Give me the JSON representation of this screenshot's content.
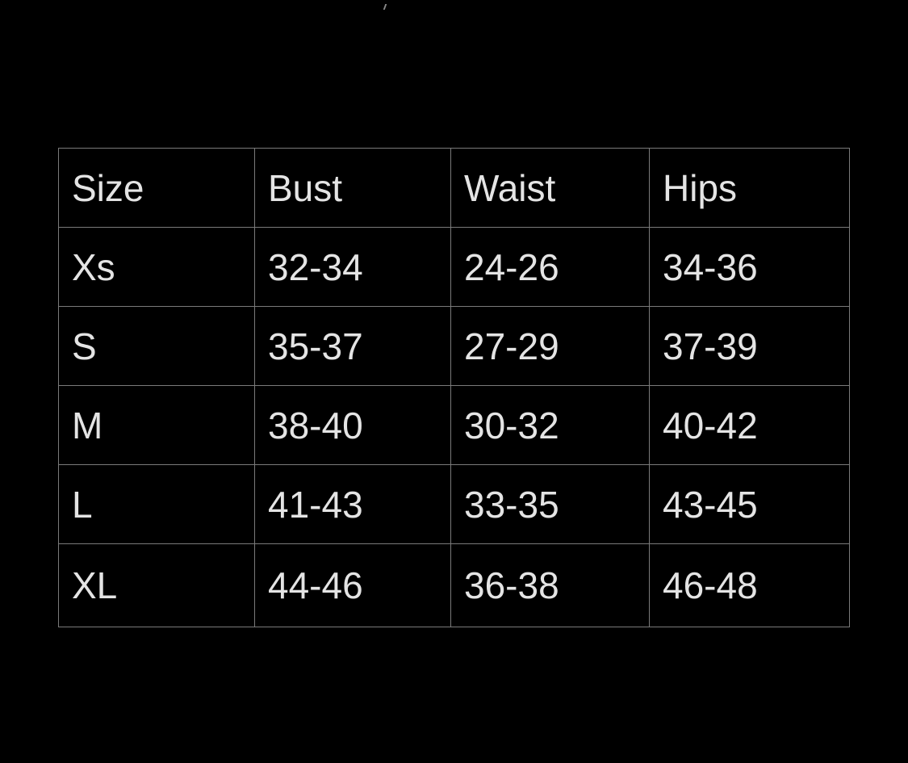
{
  "size_chart": {
    "headers": [
      "Size",
      "Bust",
      "Waist",
      "Hips"
    ],
    "rows": [
      [
        "Xs",
        "32-34",
        "24-26",
        "34-36"
      ],
      [
        "S",
        "35-37",
        "27-29",
        "37-39"
      ],
      [
        "M",
        "38-40",
        "30-32",
        "40-42"
      ],
      [
        "L",
        "41-43",
        "33-35",
        "43-45"
      ],
      [
        "XL",
        "44-46",
        "36-38",
        "46-48"
      ]
    ]
  },
  "colors": {
    "background": "#000000",
    "text": "#e4e4e4",
    "border": "#7a7a7a"
  }
}
